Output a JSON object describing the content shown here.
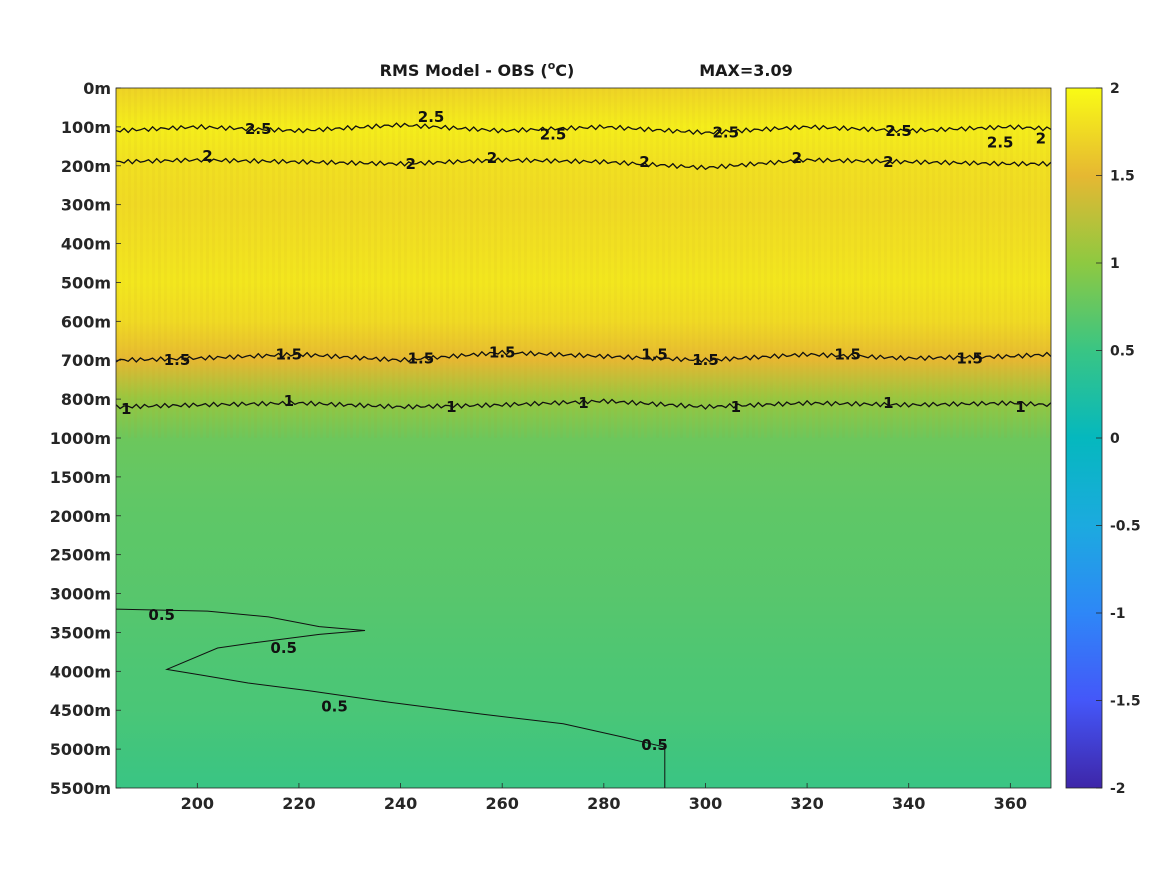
{
  "chart_data": {
    "type": "heatmap",
    "title": "RMS Model - OBS (°C)",
    "title_prefix": "RMS Model - OBS (",
    "title_unit_base": "C",
    "title_unit_sup": "o",
    "title_suffix": ")",
    "annotation": "MAX=3.09",
    "colormap": "parula",
    "xlim": [
      184,
      368
    ],
    "x_ticks": [
      200,
      220,
      240,
      260,
      280,
      300,
      320,
      340,
      360
    ],
    "x_tick_labels": [
      "200",
      "220",
      "240",
      "260",
      "280",
      "300",
      "320",
      "340",
      "360"
    ],
    "y_levels": [
      "0m",
      "100m",
      "200m",
      "300m",
      "400m",
      "500m",
      "600m",
      "700m",
      "800m",
      "1000m",
      "1500m",
      "2000m",
      "2500m",
      "3000m",
      "3500m",
      "4000m",
      "4500m",
      "5000m",
      "5500m"
    ],
    "y_reversed": true,
    "clim": [
      -2,
      2
    ],
    "colorbar_ticks": [
      2,
      1.5,
      1,
      0.5,
      0,
      -0.5,
      -1,
      -1.5,
      -2
    ],
    "colorbar_tick_labels": [
      "2",
      "1.5",
      "1",
      "0.5",
      "0",
      "-0.5",
      "-1",
      "-1.5",
      "-2"
    ],
    "level_profile": [
      {
        "level": "0m",
        "value": 1.7
      },
      {
        "level": "100m",
        "value": 1.9
      },
      {
        "level": "200m",
        "value": 1.8
      },
      {
        "level": "300m",
        "value": 1.75
      },
      {
        "level": "400m",
        "value": 1.8
      },
      {
        "level": "500m",
        "value": 1.85
      },
      {
        "level": "600m",
        "value": 1.75
      },
      {
        "level": "700m",
        "value": 1.5
      },
      {
        "level": "800m",
        "value": 1.05
      },
      {
        "level": "1000m",
        "value": 0.8
      },
      {
        "level": "1500m",
        "value": 0.75
      },
      {
        "level": "2000m",
        "value": 0.72
      },
      {
        "level": "2500m",
        "value": 0.7
      },
      {
        "level": "3000m",
        "value": 0.68
      },
      {
        "level": "3500m",
        "value": 0.65
      },
      {
        "level": "4000m",
        "value": 0.62
      },
      {
        "level": "4500m",
        "value": 0.6
      },
      {
        "level": "5000m",
        "value": 0.55
      },
      {
        "level": "5500m",
        "value": 0.5
      }
    ],
    "contours": [
      {
        "level": 2.5,
        "label": "2.5",
        "path": [
          [
            184,
            1.1
          ],
          [
            200,
            1.0
          ],
          [
            220,
            1.1
          ],
          [
            240,
            0.95
          ],
          [
            260,
            1.1
          ],
          [
            280,
            1.0
          ],
          [
            300,
            1.15
          ],
          [
            320,
            1.0
          ],
          [
            340,
            1.1
          ],
          [
            360,
            1.0
          ],
          [
            368,
            1.05
          ]
        ],
        "label_positions": [
          [
            212,
            1.05
          ],
          [
            246,
            0.75
          ],
          [
            270,
            1.2
          ],
          [
            304,
            1.15
          ],
          [
            338,
            1.1
          ],
          [
            358,
            1.4
          ]
        ]
      },
      {
        "level": 2,
        "label": "2",
        "path": [
          [
            184,
            1.9
          ],
          [
            200,
            1.85
          ],
          [
            220,
            1.9
          ],
          [
            240,
            1.95
          ],
          [
            260,
            1.85
          ],
          [
            280,
            1.9
          ],
          [
            300,
            2.05
          ],
          [
            320,
            1.85
          ],
          [
            340,
            1.9
          ],
          [
            360,
            1.95
          ],
          [
            368,
            1.95
          ]
        ],
        "label_positions": [
          [
            202,
            1.75
          ],
          [
            242,
            1.95
          ],
          [
            258,
            1.8
          ],
          [
            288,
            1.9
          ],
          [
            318,
            1.8
          ],
          [
            336,
            1.9
          ],
          [
            366,
            1.3
          ]
        ]
      },
      {
        "level": 1.5,
        "label": "1.5",
        "path": [
          [
            184,
            7.0
          ],
          [
            200,
            6.95
          ],
          [
            220,
            6.85
          ],
          [
            240,
            7.0
          ],
          [
            260,
            6.8
          ],
          [
            280,
            6.9
          ],
          [
            300,
            7.0
          ],
          [
            320,
            6.85
          ],
          [
            340,
            6.95
          ],
          [
            360,
            6.9
          ],
          [
            368,
            6.85
          ]
        ],
        "label_positions": [
          [
            196,
            7.0
          ],
          [
            218,
            6.85
          ],
          [
            244,
            6.95
          ],
          [
            260,
            6.8
          ],
          [
            290,
            6.85
          ],
          [
            300,
            7.0
          ],
          [
            328,
            6.85
          ],
          [
            352,
            6.95
          ]
        ]
      },
      {
        "level": 1,
        "label": "1",
        "path": [
          [
            184,
            8.2
          ],
          [
            200,
            8.15
          ],
          [
            220,
            8.1
          ],
          [
            240,
            8.2
          ],
          [
            260,
            8.15
          ],
          [
            280,
            8.05
          ],
          [
            300,
            8.2
          ],
          [
            320,
            8.1
          ],
          [
            340,
            8.15
          ],
          [
            360,
            8.1
          ],
          [
            368,
            8.15
          ]
        ],
        "label_positions": [
          [
            186,
            8.25
          ],
          [
            218,
            8.05
          ],
          [
            250,
            8.2
          ],
          [
            276,
            8.1
          ],
          [
            306,
            8.2
          ],
          [
            336,
            8.1
          ],
          [
            362,
            8.2
          ]
        ]
      },
      {
        "level": 0.5,
        "label": "0.5",
        "path": [
          [
            184,
            13.4
          ],
          [
            202,
            13.45
          ],
          [
            214,
            13.6
          ],
          [
            224,
            13.85
          ],
          [
            233,
            13.95
          ],
          [
            224,
            14.05
          ],
          [
            212,
            14.25
          ],
          [
            204,
            14.4
          ],
          [
            194,
            14.95
          ],
          [
            201,
            15.1
          ],
          [
            210,
            15.3
          ],
          [
            222,
            15.5
          ],
          [
            238,
            15.8
          ],
          [
            256,
            16.1
          ],
          [
            272,
            16.35
          ],
          [
            284,
            16.7
          ],
          [
            292,
            16.95
          ],
          [
            292,
            18.0
          ]
        ],
        "label_positions": [
          [
            193,
            13.55
          ],
          [
            217,
            14.4
          ],
          [
            227,
            15.9
          ],
          [
            290,
            16.9
          ]
        ]
      }
    ]
  }
}
